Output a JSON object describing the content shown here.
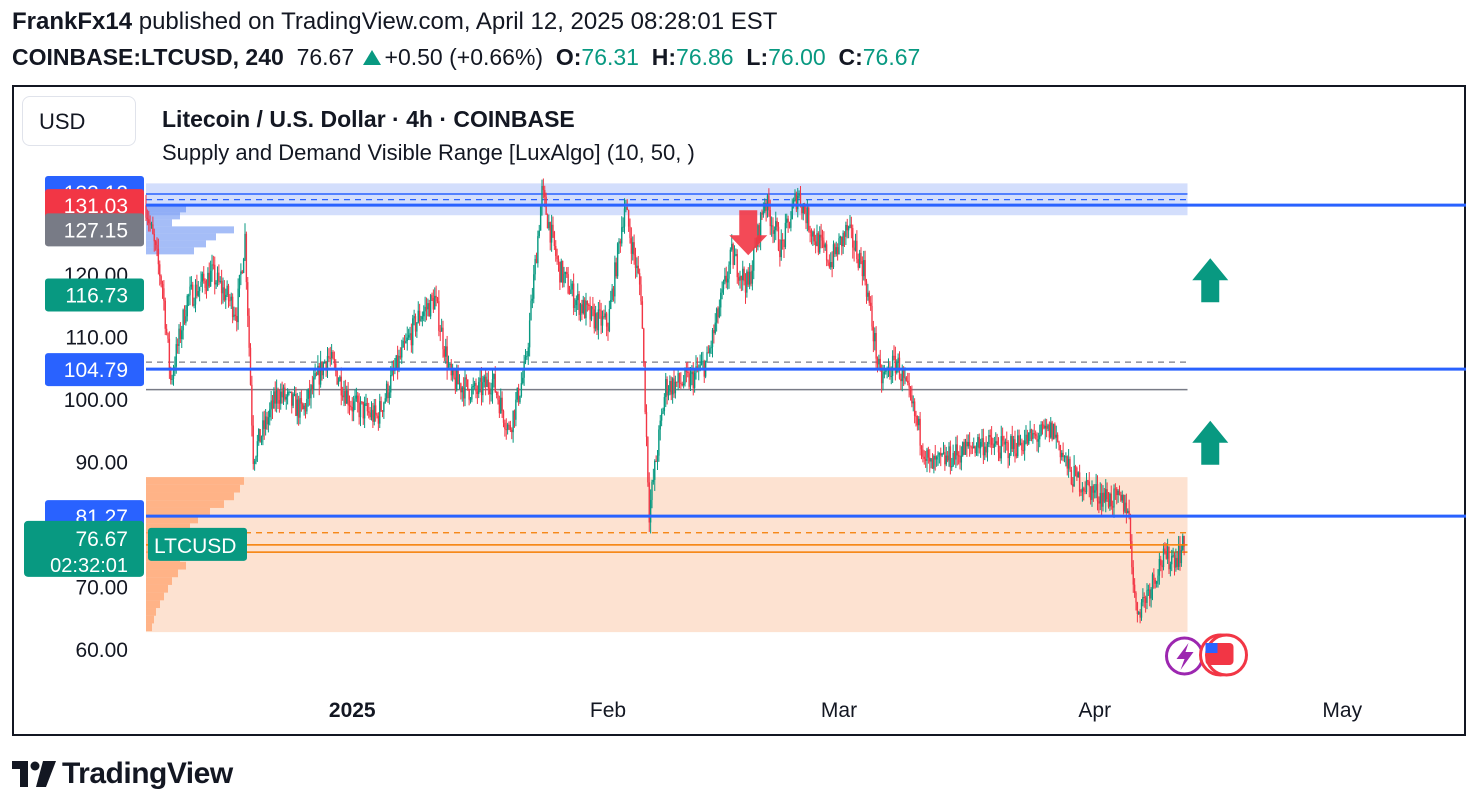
{
  "header": {
    "author": "FrankFx14",
    "published_text": "published on TradingView.com, April 12, 2025 08:28:01 EST",
    "symbol": "COINBASE:LTCUSD, 240",
    "last": "76.67",
    "change": "+0.50 (+0.66%)",
    "o_label": "O:",
    "o": "76.31",
    "h_label": "H:",
    "h": "76.86",
    "l_label": "L:",
    "l": "76.00",
    "c_label": "C:",
    "c": "76.67"
  },
  "currency_button": "USD",
  "chart_title": "Litecoin / U.S. Dollar · 4h · COINBASE",
  "indicator_label": "Supply and Demand Visible Range [LuxAlgo] (10, 50, )",
  "logo_text": "TradingView",
  "colors": {
    "up": "#089981",
    "down": "#f23645",
    "blue_line": "#2962ff",
    "supply_zone": "#d1dcfc",
    "demand_zone": "#fde0cf",
    "orange": "#f57c00"
  },
  "chart_data": {
    "type": "candlestick",
    "ylim": [
      56,
      139
    ],
    "y_ticks": [
      {
        "value": 60,
        "label": "60.00"
      },
      {
        "value": 70,
        "label": "70.00"
      },
      {
        "value": 90,
        "label": "90.00"
      },
      {
        "value": 100,
        "label": "100.00"
      },
      {
        "value": 110,
        "label": "110.00"
      },
      {
        "value": 120,
        "label": "120.00"
      }
    ],
    "x_ticks": [
      {
        "date": "2025-01-01",
        "label": "2025",
        "bold": true
      },
      {
        "date": "2025-02-01",
        "label": "Feb",
        "bold": false
      },
      {
        "date": "2025-03-01",
        "label": "Mar",
        "bold": false
      },
      {
        "date": "2025-04-01",
        "label": "Apr",
        "bold": false
      },
      {
        "date": "2025-05-01",
        "label": "May",
        "bold": false
      }
    ],
    "x_range": [
      "2024-12-07",
      "2025-05-16"
    ],
    "last_bar_date": "2025-04-12",
    "price_labels": [
      {
        "value": 133.12,
        "label": "133.12",
        "color": "#2962ff"
      },
      {
        "value": 131.03,
        "label": "131.03",
        "color": "#f23645"
      },
      {
        "value": 127.15,
        "label": "127.15",
        "color": "#787b86"
      },
      {
        "value": 116.73,
        "label": "116.73",
        "color": "#089981"
      },
      {
        "value": 104.79,
        "label": "104.79",
        "color": "#2962ff"
      },
      {
        "value": 81.27,
        "label": "81.27",
        "color": "#2962ff"
      }
    ],
    "current_price": {
      "value": 76.67,
      "label": "76.67",
      "countdown": "02:32:01",
      "symbol_tag": "LTCUSD"
    },
    "horizontal_lines": [
      {
        "value": 131.03,
        "color": "#2962ff",
        "style": "solid"
      },
      {
        "value": 104.79,
        "color": "#2962ff",
        "style": "solid"
      },
      {
        "value": 81.27,
        "color": "#2962ff",
        "style": "solid"
      }
    ],
    "supply_zone": {
      "top": 134.5,
      "bottom": 129.4,
      "avg": 132.8,
      "wavg": 131.9
    },
    "demand_zone": {
      "top": 87.5,
      "bottom": 62.7,
      "avg": 78.6,
      "wavg": 75.5
    },
    "equilibrium": {
      "avg": 105.9,
      "wavg": 101.5
    },
    "close_series": [
      {
        "date": "2024-12-07",
        "close": 131
      },
      {
        "date": "2024-12-09",
        "close": 118
      },
      {
        "date": "2024-12-10",
        "close": 103
      },
      {
        "date": "2024-12-12",
        "close": 116
      },
      {
        "date": "2024-12-15",
        "close": 120
      },
      {
        "date": "2024-12-18",
        "close": 114
      },
      {
        "date": "2024-12-19",
        "close": 126
      },
      {
        "date": "2024-12-20",
        "close": 91
      },
      {
        "date": "2024-12-23",
        "close": 101
      },
      {
        "date": "2024-12-26",
        "close": 98
      },
      {
        "date": "2024-12-29",
        "close": 107
      },
      {
        "date": "2025-01-01",
        "close": 99
      },
      {
        "date": "2025-01-04",
        "close": 97
      },
      {
        "date": "2025-01-06",
        "close": 104
      },
      {
        "date": "2025-01-09",
        "close": 113
      },
      {
        "date": "2025-01-11",
        "close": 116
      },
      {
        "date": "2025-01-13",
        "close": 103
      },
      {
        "date": "2025-01-16",
        "close": 101
      },
      {
        "date": "2025-01-18",
        "close": 103
      },
      {
        "date": "2025-01-20",
        "close": 95
      },
      {
        "date": "2025-01-22",
        "close": 105
      },
      {
        "date": "2025-01-24",
        "close": 133
      },
      {
        "date": "2025-01-26",
        "close": 121
      },
      {
        "date": "2025-01-28",
        "close": 116
      },
      {
        "date": "2025-01-30",
        "close": 113
      },
      {
        "date": "2025-02-01",
        "close": 112
      },
      {
        "date": "2025-02-03",
        "close": 131
      },
      {
        "date": "2025-02-05",
        "close": 117
      },
      {
        "date": "2025-02-06",
        "close": 82
      },
      {
        "date": "2025-02-08",
        "close": 102
      },
      {
        "date": "2025-02-11",
        "close": 103
      },
      {
        "date": "2025-02-13",
        "close": 106
      },
      {
        "date": "2025-02-16",
        "close": 123
      },
      {
        "date": "2025-02-18",
        "close": 118
      },
      {
        "date": "2025-02-20",
        "close": 132
      },
      {
        "date": "2025-02-22",
        "close": 124
      },
      {
        "date": "2025-02-24",
        "close": 133
      },
      {
        "date": "2025-02-26",
        "close": 126
      },
      {
        "date": "2025-02-28",
        "close": 122
      },
      {
        "date": "2025-03-02",
        "close": 127
      },
      {
        "date": "2025-03-04",
        "close": 121
      },
      {
        "date": "2025-03-06",
        "close": 103
      },
      {
        "date": "2025-03-08",
        "close": 106
      },
      {
        "date": "2025-03-10",
        "close": 98
      },
      {
        "date": "2025-03-12",
        "close": 89
      },
      {
        "date": "2025-03-15",
        "close": 91
      },
      {
        "date": "2025-03-18",
        "close": 93
      },
      {
        "date": "2025-03-21",
        "close": 92
      },
      {
        "date": "2025-03-25",
        "close": 94
      },
      {
        "date": "2025-03-27",
        "close": 95
      },
      {
        "date": "2025-03-29",
        "close": 88
      },
      {
        "date": "2025-04-01",
        "close": 85
      },
      {
        "date": "2025-04-03",
        "close": 84
      },
      {
        "date": "2025-04-05",
        "close": 83
      },
      {
        "date": "2025-04-06",
        "close": 66
      },
      {
        "date": "2025-04-07",
        "close": 68
      },
      {
        "date": "2025-04-09",
        "close": 74
      },
      {
        "date": "2025-04-11",
        "close": 75
      },
      {
        "date": "2025-04-12",
        "close": 76.67
      }
    ],
    "annotations": [
      {
        "type": "arrow-down",
        "date": "2025-02-18",
        "price": 123,
        "color": "#f23645"
      },
      {
        "type": "arrow-up",
        "date": "2025-04-15",
        "price": 119,
        "color": "#089981"
      },
      {
        "type": "arrow-up",
        "date": "2025-04-15",
        "price": 93,
        "color": "#089981"
      }
    ]
  }
}
